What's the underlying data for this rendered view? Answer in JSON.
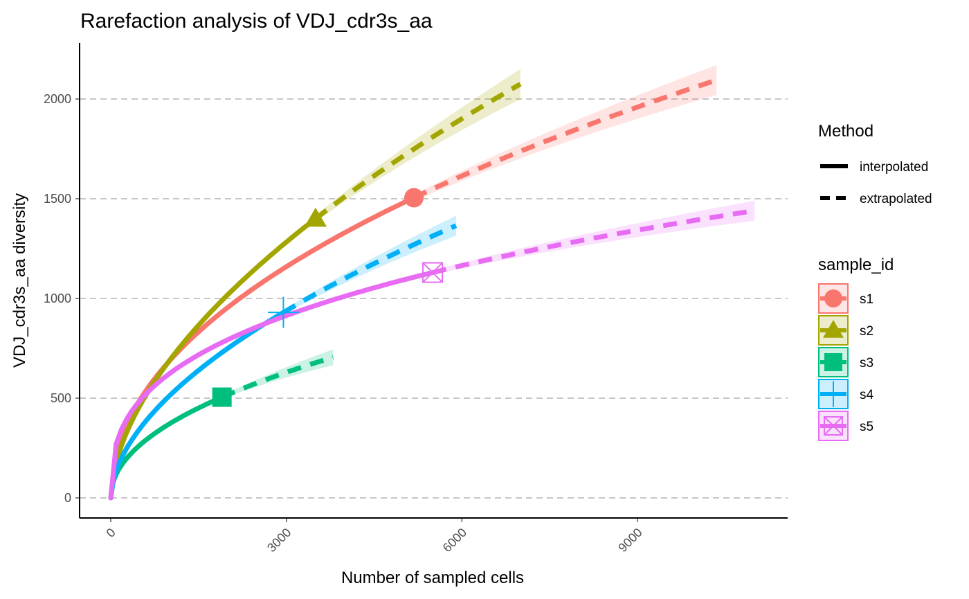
{
  "chart_data": {
    "type": "line",
    "title": "Rarefaction analysis of VDJ_cdr3s_aa",
    "xlabel": "Number of sampled cells",
    "ylabel": "VDJ_cdr3s_aa diversity",
    "xlim": [
      -550,
      11600
    ],
    "ylim": [
      -100,
      2330
    ],
    "x_ticks": [
      0,
      3000,
      6000,
      9000
    ],
    "x_tick_labels": [
      "0",
      "3000",
      "6000",
      "9000"
    ],
    "y_ticks": [
      0,
      500,
      1000,
      1500,
      2000
    ],
    "y_tick_labels": [
      "0",
      "500",
      "1000",
      "1500",
      "2000"
    ],
    "grid": "horizontal dashed",
    "legend_placement": "right",
    "method_legend": {
      "title": "Method",
      "entries": [
        {
          "label": "interpolated",
          "style": "solid"
        },
        {
          "label": "extrapolated",
          "style": "dashed"
        }
      ]
    },
    "sample_legend": {
      "title": "sample_id"
    },
    "series": [
      {
        "name": "s1",
        "color": "#F8766D",
        "shape": "circle",
        "observed": [
          5180,
          1505
        ],
        "max_x": 10350,
        "end_y": 2095,
        "band": 75
      },
      {
        "name": "s2",
        "color": "#A3A500",
        "shape": "triangle",
        "observed": [
          3500,
          1400
        ],
        "max_x": 7000,
        "end_y": 2075,
        "band": 75
      },
      {
        "name": "s3",
        "color": "#00BF7D",
        "shape": "square",
        "observed": [
          1900,
          505
        ],
        "max_x": 3800,
        "end_y": 705,
        "band": 40
      },
      {
        "name": "s4",
        "color": "#00B0F6",
        "shape": "plus",
        "observed": [
          2950,
          930
        ],
        "max_x": 5900,
        "end_y": 1365,
        "band": 50
      },
      {
        "name": "s5",
        "color": "#E76BF3",
        "shape": "square-x",
        "observed": [
          5500,
          1130
        ],
        "max_x": 11000,
        "end_y": 1440,
        "band": 50
      }
    ]
  }
}
